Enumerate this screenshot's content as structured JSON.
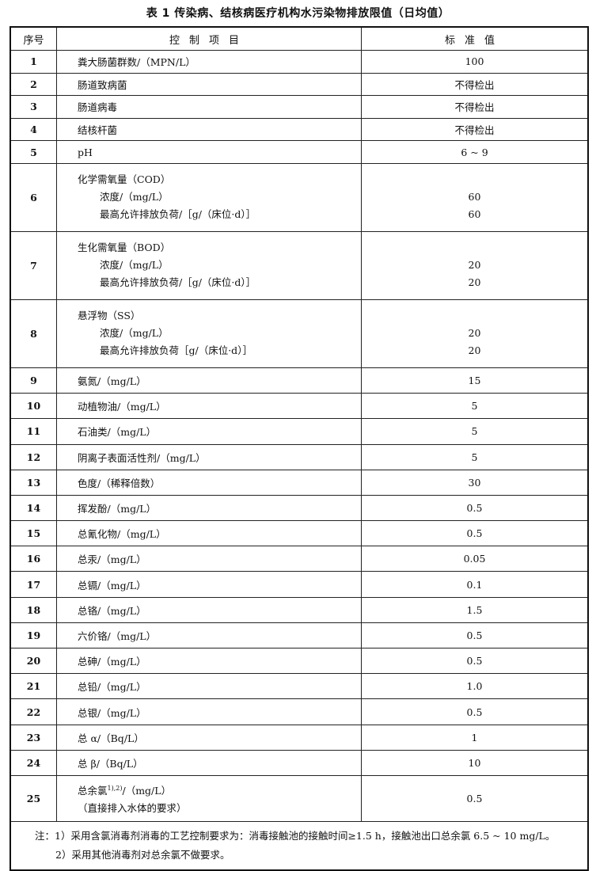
{
  "title": "表 1   传染病、结核病医疗机构水污染物排放限值（日均值）",
  "headers": [
    "序号",
    "控制项目",
    "标准值"
  ],
  "rows": [
    {
      "no": "1",
      "item": "粪大肠菌群数/（MPN/L）",
      "value": "100"
    },
    {
      "no": "2",
      "item": "肠道致病菌",
      "value": "不得检出"
    },
    {
      "no": "3",
      "item": "肠道病毒",
      "value": "不得检出"
    },
    {
      "no": "4",
      "item": "结核杆菌",
      "value": "不得检出"
    },
    {
      "no": "5",
      "item": "pH",
      "value": "6 ~ 9"
    },
    {
      "no": "6",
      "item": "化学需氧量（COD）",
      "sub": [
        {
          "item": "浓度/（mg/L）",
          "value": "60"
        },
        {
          "item": "最高允许排放负荷/［g/（床位·d）］",
          "value": "60"
        }
      ]
    },
    {
      "no": "7",
      "item": "生化需氧量（BOD）",
      "sub": [
        {
          "item": "浓度/（mg/L）",
          "value": "20"
        },
        {
          "item": "最高允许排放负荷/［g/（床位·d）］",
          "value": "20"
        }
      ]
    },
    {
      "no": "8",
      "item": "悬浮物（SS）",
      "sub": [
        {
          "item": "浓度/（mg/L）",
          "value": "20"
        },
        {
          "item": "最高允许排放负荷［g/（床位·d）］",
          "value": "20"
        }
      ]
    },
    {
      "no": "9",
      "item": "氨氮/（mg/L）",
      "value": "15"
    },
    {
      "no": "10",
      "item": "动植物油/（mg/L）",
      "value": "5"
    },
    {
      "no": "11",
      "item": "石油类/（mg/L）",
      "value": "5"
    },
    {
      "no": "12",
      "item": "阴离子表面活性剂/（mg/L）",
      "value": "5"
    },
    {
      "no": "13",
      "item": "色度/（稀释倍数）",
      "value": "30"
    },
    {
      "no": "14",
      "item": "挥发酚/（mg/L）",
      "value": "0.5"
    },
    {
      "no": "15",
      "item": "总氰化物/（mg/L）",
      "value": "0.5"
    },
    {
      "no": "16",
      "item": "总汞/（mg/L）",
      "value": "0.05"
    },
    {
      "no": "17",
      "item": "总镉/（mg/L）",
      "value": "0.1"
    },
    {
      "no": "18",
      "item": "总铬/（mg/L）",
      "value": "1.5"
    },
    {
      "no": "19",
      "item": "六价铬/（mg/L）",
      "value": "0.5"
    },
    {
      "no": "20",
      "item": "总砷/（mg/L）",
      "value": "0.5"
    },
    {
      "no": "21",
      "item": "总铅/（mg/L）",
      "value": "1.0"
    },
    {
      "no": "22",
      "item": "总银/（mg/L）",
      "value": "0.5"
    },
    {
      "no": "23",
      "item": "总 α/（Bq/L）",
      "value": "1"
    },
    {
      "no": "24",
      "item": "总 β/（Bq/L）",
      "value": "10"
    },
    {
      "no": "25",
      "item_main": "总余氯",
      "item_sup": "1),2)",
      "item_unit": "/（mg/L）",
      "item_line2": "（直接排入水体的要求）",
      "value": "0.5"
    }
  ],
  "notes": [
    "注：1）采用含氯消毒剂消毒的工艺控制要求为：消毒接触池的接触时间≥1.5 h，接触池出口总余氯 6.5 ~ 10 mg/L。",
    "2）采用其他消毒剂对总余氯不做要求。"
  ]
}
